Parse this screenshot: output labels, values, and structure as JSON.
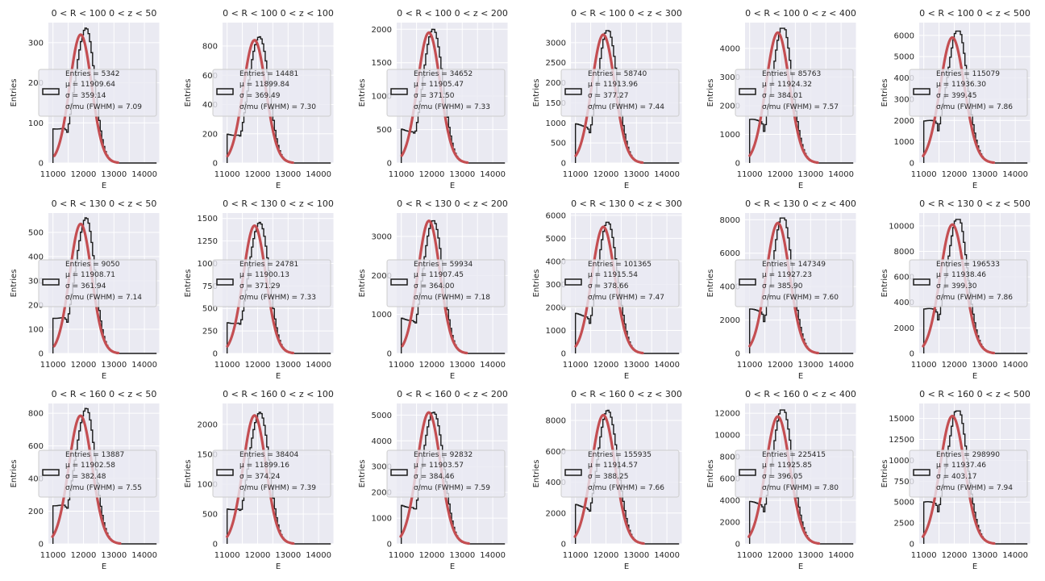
{
  "figure": {
    "colors": {
      "histogram": "#1a1a1a",
      "fit": "#c44e52",
      "panel_background": "#eaeaf2",
      "grid": "#ffffff"
    },
    "legend_labels": {
      "entries": "Entries = ",
      "mu": "μ = ",
      "sigma": "σ = ",
      "ratio": "σ/mu (FWHM) = "
    }
  },
  "chart_data": [
    {
      "type": "histogram",
      "title": "0 < R < 100 0 < z < 50",
      "xlabel": "E",
      "ylabel": "Entries",
      "xlim": [
        10850,
        14500
      ],
      "ylim": [
        0,
        350
      ],
      "yticks": [
        0,
        100,
        200,
        300
      ],
      "xticks": [
        11000,
        12000,
        13000,
        14000
      ],
      "x_grid": [
        10500,
        11500,
        12500,
        13500,
        14500
      ],
      "grid": true,
      "legend": {
        "entries": "5342",
        "mu": "11909.64",
        "sigma": "359.14",
        "ratio": "7.09",
        "location": "center-left"
      },
      "fit": {
        "mu": 11909.64,
        "sigma": 359.14,
        "amplitude": 320
      },
      "histogram": {
        "peak": 342,
        "low_edge_value": 88
      }
    },
    {
      "type": "histogram",
      "title": "0 < R < 100 0 < z < 100",
      "xlabel": "E",
      "ylabel": "Entries",
      "xlim": [
        10850,
        14500
      ],
      "ylim": [
        0,
        960
      ],
      "yticks": [
        0,
        200,
        400,
        600,
        800
      ],
      "xticks": [
        11000,
        12000,
        13000,
        14000
      ],
      "x_grid": [
        10500,
        11500,
        12500,
        13500,
        14500
      ],
      "grid": true,
      "legend": {
        "entries": "14481",
        "mu": "11899.84",
        "sigma": "369.49",
        "ratio": "7.30",
        "location": "center-left"
      },
      "fit": {
        "mu": 11899.84,
        "sigma": 369.49,
        "amplitude": 840
      },
      "histogram": {
        "peak": 890,
        "low_edge_value": 200
      }
    },
    {
      "type": "histogram",
      "title": "0 < R < 100 0 < z < 200",
      "xlabel": "E",
      "ylabel": "Entries",
      "xlim": [
        10850,
        14500
      ],
      "ylim": [
        0,
        2100
      ],
      "yticks": [
        0,
        500,
        1000,
        1500,
        2000
      ],
      "xticks": [
        11000,
        12000,
        13000,
        14000
      ],
      "x_grid": [
        10500,
        11500,
        12500,
        13500,
        14500
      ],
      "grid": true,
      "legend": {
        "entries": "34652",
        "mu": "11905.47",
        "sigma": "371.50",
        "ratio": "7.33",
        "location": "center-left"
      },
      "fit": {
        "mu": 11905.47,
        "sigma": 371.5,
        "amplitude": 1950
      },
      "histogram": {
        "peak": 2030,
        "low_edge_value": 500
      }
    },
    {
      "type": "histogram",
      "title": "0 < R < 100 0 < z < 300",
      "xlabel": "E",
      "ylabel": "Entries",
      "xlim": [
        10850,
        14500
      ],
      "ylim": [
        0,
        3500
      ],
      "yticks": [
        0,
        500,
        1000,
        1500,
        2000,
        2500,
        3000
      ],
      "xticks": [
        11000,
        12000,
        13000,
        14000
      ],
      "x_grid": [
        10500,
        11500,
        12500,
        13500,
        14500
      ],
      "grid": true,
      "legend": {
        "entries": "58740",
        "mu": "11913.96",
        "sigma": "377.27",
        "ratio": "7.44",
        "location": "center-left"
      },
      "fit": {
        "mu": 11913.96,
        "sigma": 377.27,
        "amplitude": 3200
      },
      "histogram": {
        "peak": 3300,
        "low_edge_value": 950
      }
    },
    {
      "type": "histogram",
      "title": "0 < R < 100 0 < z < 400",
      "xlabel": "E",
      "ylabel": "Entries",
      "xlim": [
        10850,
        14500
      ],
      "ylim": [
        0,
        4900
      ],
      "yticks": [
        0,
        1000,
        2000,
        3000,
        4000
      ],
      "xticks": [
        11000,
        12000,
        13000,
        14000
      ],
      "x_grid": [
        10500,
        11500,
        12500,
        13500,
        14500
      ],
      "grid": true,
      "legend": {
        "entries": "85763",
        "mu": "11924.32",
        "sigma": "384.01",
        "ratio": "7.57",
        "location": "center-left"
      },
      "fit": {
        "mu": 11924.32,
        "sigma": 384.01,
        "amplitude": 4550
      },
      "histogram": {
        "peak": 4700,
        "low_edge_value": 1500
      }
    },
    {
      "type": "histogram",
      "title": "0 < R < 100 0 < z < 500",
      "xlabel": "E",
      "ylabel": "Entries",
      "xlim": [
        10850,
        14500
      ],
      "ylim": [
        0,
        6600
      ],
      "yticks": [
        0,
        1000,
        2000,
        3000,
        4000,
        5000,
        6000
      ],
      "xticks": [
        11000,
        12000,
        13000,
        14000
      ],
      "x_grid": [
        10500,
        11500,
        12500,
        13500,
        14500
      ],
      "grid": true,
      "legend": {
        "entries": "115079",
        "mu": "11936.30",
        "sigma": "399.45",
        "ratio": "7.86",
        "location": "center-left"
      },
      "fit": {
        "mu": 11936.3,
        "sigma": 399.45,
        "amplitude": 5900
      },
      "histogram": {
        "peak": 6200,
        "low_edge_value": 2000
      }
    },
    {
      "type": "histogram",
      "title": "0 < R < 130 0 < z < 50",
      "xlabel": "E",
      "ylabel": "Entries",
      "xlim": [
        10850,
        14500
      ],
      "ylim": [
        0,
        580
      ],
      "yticks": [
        0,
        100,
        200,
        300,
        400,
        500
      ],
      "xticks": [
        11000,
        12000,
        13000,
        14000
      ],
      "x_grid": [
        10500,
        11500,
        12500,
        13500,
        14500
      ],
      "grid": true,
      "legend": {
        "entries": "9050",
        "mu": "11908.71",
        "sigma": "361.94",
        "ratio": "7.14",
        "location": "center-left"
      },
      "fit": {
        "mu": 11908.71,
        "sigma": 361.94,
        "amplitude": 535
      },
      "histogram": {
        "peak": 565,
        "low_edge_value": 150
      }
    },
    {
      "type": "histogram",
      "title": "0 < R < 130 0 < z < 100",
      "xlabel": "E",
      "ylabel": "Entries",
      "xlim": [
        10850,
        14500
      ],
      "ylim": [
        0,
        1560
      ],
      "yticks": [
        0,
        250,
        500,
        750,
        1000,
        1250,
        1500
      ],
      "xticks": [
        11000,
        12000,
        13000,
        14000
      ],
      "x_grid": [
        10500,
        11500,
        12500,
        13500,
        14500
      ],
      "grid": true,
      "legend": {
        "entries": "24781",
        "mu": "11900.13",
        "sigma": "371.29",
        "ratio": "7.33",
        "location": "center-left"
      },
      "fit": {
        "mu": 11900.13,
        "sigma": 371.29,
        "amplitude": 1420
      },
      "histogram": {
        "peak": 1500,
        "low_edge_value": 350
      }
    },
    {
      "type": "histogram",
      "title": "0 < R < 130 0 < z < 200",
      "xlabel": "E",
      "ylabel": "Entries",
      "xlim": [
        10850,
        14500
      ],
      "ylim": [
        0,
        3600
      ],
      "yticks": [
        0,
        1000,
        2000,
        3000
      ],
      "xticks": [
        11000,
        12000,
        13000,
        14000
      ],
      "x_grid": [
        10500,
        11500,
        12500,
        13500,
        14500
      ],
      "grid": true,
      "legend": {
        "entries": "59934",
        "mu": "11907.45",
        "sigma": "364.00",
        "ratio": "7.18",
        "location": "center-left"
      },
      "fit": {
        "mu": 11907.45,
        "sigma": 364.0,
        "amplitude": 3400
      },
      "histogram": {
        "peak": 3480,
        "low_edge_value": 900
      }
    },
    {
      "type": "histogram",
      "title": "0 < R < 130 0 < z < 300",
      "xlabel": "E",
      "ylabel": "Entries",
      "xlim": [
        10850,
        14500
      ],
      "ylim": [
        0,
        6100
      ],
      "yticks": [
        0,
        1000,
        2000,
        3000,
        4000,
        5000,
        6000
      ],
      "xticks": [
        11000,
        12000,
        13000,
        14000
      ],
      "x_grid": [
        10500,
        11500,
        12500,
        13500,
        14500
      ],
      "grid": true,
      "legend": {
        "entries": "101365",
        "mu": "11915.54",
        "sigma": "378.66",
        "ratio": "7.47",
        "location": "center-left"
      },
      "fit": {
        "mu": 11915.54,
        "sigma": 378.66,
        "amplitude": 5500
      },
      "histogram": {
        "peak": 5700,
        "low_edge_value": 1700
      }
    },
    {
      "type": "histogram",
      "title": "0 < R < 130 0 < z < 400",
      "xlabel": "E",
      "ylabel": "Entries",
      "xlim": [
        10850,
        14500
      ],
      "ylim": [
        0,
        8400
      ],
      "yticks": [
        0,
        2000,
        4000,
        6000,
        8000
      ],
      "xticks": [
        11000,
        12000,
        13000,
        14000
      ],
      "x_grid": [
        10500,
        11500,
        12500,
        13500,
        14500
      ],
      "grid": true,
      "legend": {
        "entries": "147349",
        "mu": "11927.23",
        "sigma": "385.90",
        "ratio": "7.60",
        "location": "center-left"
      },
      "fit": {
        "mu": 11927.23,
        "sigma": 385.9,
        "amplitude": 7800
      },
      "histogram": {
        "peak": 8100,
        "low_edge_value": 2600
      }
    },
    {
      "type": "histogram",
      "title": "0 < R < 130 0 < z < 500",
      "xlabel": "E",
      "ylabel": "Entries",
      "xlim": [
        10850,
        14500
      ],
      "ylim": [
        0,
        11000
      ],
      "yticks": [
        0,
        2000,
        4000,
        6000,
        8000,
        10000
      ],
      "xticks": [
        11000,
        12000,
        13000,
        14000
      ],
      "x_grid": [
        10500,
        11500,
        12500,
        13500,
        14500
      ],
      "grid": true,
      "legend": {
        "entries": "196533",
        "mu": "11938.46",
        "sigma": "399.30",
        "ratio": "7.86",
        "location": "center-left"
      },
      "fit": {
        "mu": 11938.46,
        "sigma": 399.3,
        "amplitude": 10100
      },
      "histogram": {
        "peak": 10500,
        "low_edge_value": 3500
      }
    },
    {
      "type": "histogram",
      "title": "0 < R < 160 0 < z < 50",
      "xlabel": "E",
      "ylabel": "Entries",
      "xlim": [
        10850,
        14500
      ],
      "ylim": [
        0,
        860
      ],
      "yticks": [
        0,
        200,
        400,
        600,
        800
      ],
      "xticks": [
        11000,
        12000,
        13000,
        14000
      ],
      "x_grid": [
        10500,
        11500,
        12500,
        13500,
        14500
      ],
      "grid": true,
      "legend": {
        "entries": "13887",
        "mu": "11902.58",
        "sigma": "382.48",
        "ratio": "7.55",
        "location": "center-left"
      },
      "fit": {
        "mu": 11902.58,
        "sigma": 382.48,
        "amplitude": 785
      },
      "histogram": {
        "peak": 830,
        "low_edge_value": 240
      }
    },
    {
      "type": "histogram",
      "title": "0 < R < 160 0 < z < 100",
      "xlabel": "E",
      "ylabel": "Entries",
      "xlim": [
        10850,
        14500
      ],
      "ylim": [
        0,
        2350
      ],
      "yticks": [
        0,
        500,
        1000,
        1500,
        2000
      ],
      "xticks": [
        11000,
        12000,
        13000,
        14000
      ],
      "x_grid": [
        10500,
        11500,
        12500,
        13500,
        14500
      ],
      "grid": true,
      "legend": {
        "entries": "38404",
        "mu": "11899.16",
        "sigma": "374.24",
        "ratio": "7.39",
        "location": "center-left"
      },
      "fit": {
        "mu": 11899.16,
        "sigma": 374.24,
        "amplitude": 2150
      },
      "histogram": {
        "peak": 2260,
        "low_edge_value": 600
      }
    },
    {
      "type": "histogram",
      "title": "0 < R < 160 0 < z < 200",
      "xlabel": "E",
      "ylabel": "Entries",
      "xlim": [
        10850,
        14500
      ],
      "ylim": [
        0,
        5450
      ],
      "yticks": [
        0,
        1000,
        2000,
        3000,
        4000,
        5000
      ],
      "xticks": [
        11000,
        12000,
        13000,
        14000
      ],
      "x_grid": [
        10500,
        11500,
        12500,
        13500,
        14500
      ],
      "grid": true,
      "legend": {
        "entries": "92832",
        "mu": "11903.57",
        "sigma": "384.46",
        "ratio": "7.59",
        "location": "center-left"
      },
      "fit": {
        "mu": 11903.57,
        "sigma": 384.46,
        "amplitude": 5100
      },
      "histogram": {
        "peak": 5250,
        "low_edge_value": 1500
      }
    },
    {
      "type": "histogram",
      "title": "0 < R < 160 0 < z < 300",
      "xlabel": "E",
      "ylabel": "Entries",
      "xlim": [
        10850,
        14500
      ],
      "ylim": [
        0,
        9100
      ],
      "yticks": [
        0,
        2000,
        4000,
        6000,
        8000
      ],
      "xticks": [
        11000,
        12000,
        13000,
        14000
      ],
      "x_grid": [
        10500,
        11500,
        12500,
        13500,
        14500
      ],
      "grid": true,
      "legend": {
        "entries": "155935",
        "mu": "11914.57",
        "sigma": "388.25",
        "ratio": "7.66",
        "location": "center-left"
      },
      "fit": {
        "mu": 11914.57,
        "sigma": 388.25,
        "amplitude": 8350
      },
      "histogram": {
        "peak": 8700,
        "low_edge_value": 2500
      }
    },
    {
      "type": "histogram",
      "title": "0 < R < 160 0 < z < 400",
      "xlabel": "E",
      "ylabel": "Entries",
      "xlim": [
        10850,
        14500
      ],
      "ylim": [
        0,
        12900
      ],
      "yticks": [
        0,
        2000,
        4000,
        6000,
        8000,
        10000,
        12000
      ],
      "xticks": [
        11000,
        12000,
        13000,
        14000
      ],
      "x_grid": [
        10500,
        11500,
        12500,
        13500,
        14500
      ],
      "grid": true,
      "legend": {
        "entries": "225415",
        "mu": "11925.85",
        "sigma": "396.05",
        "ratio": "7.80",
        "location": "center-left"
      },
      "fit": {
        "mu": 11925.85,
        "sigma": 396.05,
        "amplitude": 11700
      },
      "histogram": {
        "peak": 12300,
        "low_edge_value": 3800
      }
    },
    {
      "type": "histogram",
      "title": "0 < R < 160 0 < z < 500",
      "xlabel": "E",
      "ylabel": "Entries",
      "xlim": [
        10850,
        14500
      ],
      "ylim": [
        0,
        16800
      ],
      "yticks": [
        0,
        2500,
        5000,
        7500,
        10000,
        12500,
        15000
      ],
      "xticks": [
        11000,
        12000,
        13000,
        14000
      ],
      "x_grid": [
        10500,
        11500,
        12500,
        13500,
        14500
      ],
      "grid": true,
      "legend": {
        "entries": "298990",
        "mu": "11937.46",
        "sigma": "403.17",
        "ratio": "7.94",
        "location": "center-left"
      },
      "fit": {
        "mu": 11937.46,
        "sigma": 403.17,
        "amplitude": 15300
      },
      "histogram": {
        "peak": 15900,
        "low_edge_value": 5000
      }
    }
  ]
}
